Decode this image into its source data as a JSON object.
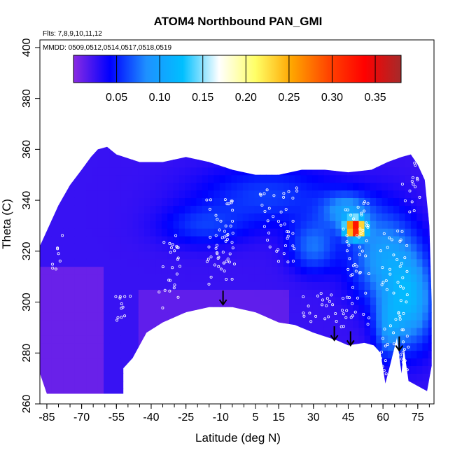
{
  "chart_data": {
    "type": "heatmap",
    "title": "ATOM4 Northbound PAN_GMI",
    "note_flights": "Flts: 7,8,9,10,11,12",
    "note_dates": "MMDD: 0509,0512,0514,0517,0518,0519",
    "xlabel": "Latitude (deg N)",
    "ylabel": "Theta (C)",
    "xlim": [
      -88,
      82
    ],
    "ylim": [
      260,
      403
    ],
    "x_ticks": [
      -85,
      -70,
      -55,
      -40,
      -25,
      -10,
      5,
      15,
      30,
      45,
      60,
      75
    ],
    "x_tick_labels": [
      "-85",
      "-70",
      "-55",
      "-40",
      "-25",
      "-10",
      "5",
      "15",
      "30",
      "45",
      "60",
      "75"
    ],
    "y_ticks": [
      260,
      280,
      300,
      320,
      340,
      360,
      380,
      400
    ],
    "y_tick_labels": [
      "260",
      "280",
      "300",
      "320",
      "340",
      "360",
      "380",
      "400"
    ],
    "colorbar": {
      "range": [
        0.0,
        0.38
      ],
      "ticks": [
        0.05,
        0.1,
        0.15,
        0.2,
        0.25,
        0.3,
        0.35
      ],
      "tick_labels": [
        "0.05",
        "0.10",
        "0.15",
        "0.20",
        "0.25",
        "0.30",
        "0.35"
      ],
      "colors": [
        "#8a2be2",
        "#0000ff",
        "#1e90ff",
        "#00bfff",
        "#ffffff",
        "#ffff66",
        "#ffa500",
        "#ff4500",
        "#ff0000",
        "#a52a2a"
      ]
    },
    "grid": false,
    "arrows": [
      {
        "lat": -9,
        "theta": 299
      },
      {
        "lat": 39,
        "theta": 285
      },
      {
        "lat": 46,
        "theta": 283
      },
      {
        "lat": 67,
        "theta": 281
      }
    ],
    "plume": {
      "lat": 48,
      "theta": 329,
      "value": 0.33
    }
  }
}
